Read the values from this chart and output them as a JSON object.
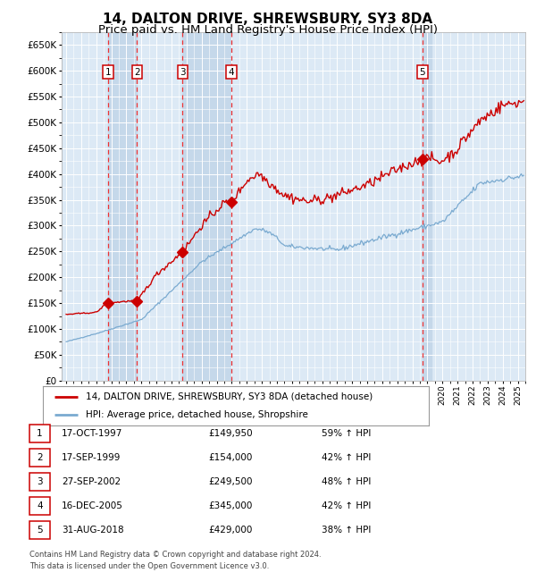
{
  "title": "14, DALTON DRIVE, SHREWSBURY, SY3 8DA",
  "subtitle": "Price paid vs. HM Land Registry's House Price Index (HPI)",
  "title_fontsize": 11,
  "subtitle_fontsize": 9.5,
  "background_color": "#ffffff",
  "plot_bg_color": "#dce9f5",
  "grid_color": "#ffffff",
  "ylim": [
    0,
    675000
  ],
  "yticks": [
    0,
    50000,
    100000,
    150000,
    200000,
    250000,
    300000,
    350000,
    400000,
    450000,
    500000,
    550000,
    600000,
    650000
  ],
  "xlim_start": 1994.7,
  "xlim_end": 2025.5,
  "sales": [
    {
      "id": 1,
      "date_label": "17-OCT-1997",
      "year": 1997.79,
      "price": 149950,
      "pct": "59% ↑ HPI"
    },
    {
      "id": 2,
      "date_label": "17-SEP-1999",
      "year": 1999.71,
      "price": 154000,
      "pct": "42% ↑ HPI"
    },
    {
      "id": 3,
      "date_label": "27-SEP-2002",
      "year": 2002.74,
      "price": 249500,
      "pct": "48% ↑ HPI"
    },
    {
      "id": 4,
      "date_label": "16-DEC-2005",
      "year": 2005.96,
      "price": 345000,
      "pct": "42% ↑ HPI"
    },
    {
      "id": 5,
      "date_label": "31-AUG-2018",
      "year": 2018.66,
      "price": 429000,
      "pct": "38% ↑ HPI"
    }
  ],
  "property_line_color": "#cc0000",
  "hpi_line_color": "#7aaad0",
  "sale_marker_color": "#cc0000",
  "dashed_line_color": "#ee3333",
  "shaded_region_color": "#c5d8ea",
  "legend_property_label": "14, DALTON DRIVE, SHREWSBURY, SY3 8DA (detached house)",
  "legend_hpi_label": "HPI: Average price, detached house, Shropshire",
  "footer_text": "Contains HM Land Registry data © Crown copyright and database right 2024.\nThis data is licensed under the Open Government Licence v3.0.",
  "table_rows": [
    {
      "id": 1,
      "date": "17-OCT-1997",
      "price": "£149,950",
      "pct": "59% ↑ HPI"
    },
    {
      "id": 2,
      "date": "17-SEP-1999",
      "price": "£154,000",
      "pct": "42% ↑ HPI"
    },
    {
      "id": 3,
      "date": "27-SEP-2002",
      "price": "£249,500",
      "pct": "48% ↑ HPI"
    },
    {
      "id": 4,
      "date": "16-DEC-2005",
      "price": "£345,000",
      "pct": "42% ↑ HPI"
    },
    {
      "id": 5,
      "date": "31-AUG-2018",
      "price": "£429,000",
      "pct": "38% ↑ HPI"
    }
  ]
}
